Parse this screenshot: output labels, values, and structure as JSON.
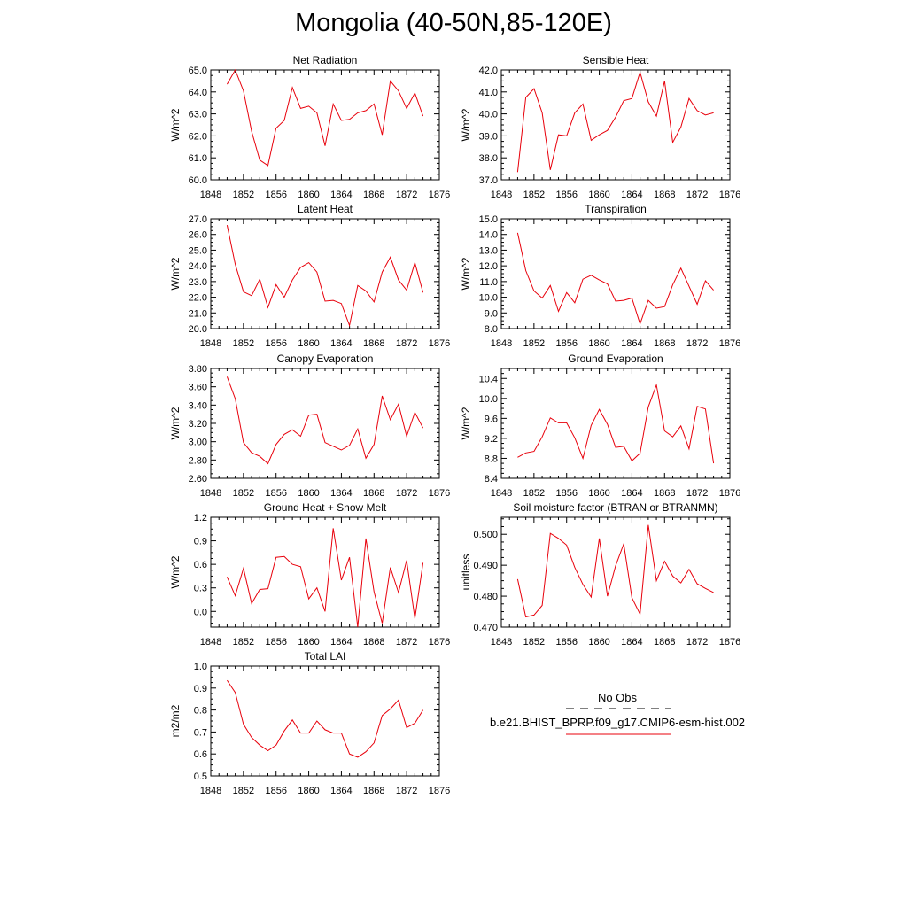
{
  "page_title": "Mongolia (40-50N,85-120E)",
  "line_color": "#e8000b",
  "chart_data": [
    {
      "type": "line",
      "title": "Net Radiation",
      "ylabel": "W/m^2",
      "x": [
        1850,
        1851,
        1852,
        1853,
        1854,
        1855,
        1856,
        1857,
        1858,
        1859,
        1860,
        1861,
        1862,
        1863,
        1864,
        1865,
        1866,
        1867,
        1868,
        1869,
        1870,
        1871,
        1872,
        1873,
        1874
      ],
      "series": [
        {
          "values": [
            64.35,
            65.0,
            64.05,
            62.2,
            60.9,
            60.65,
            62.35,
            62.7,
            64.2,
            63.25,
            63.35,
            63.05,
            61.55,
            63.45,
            62.7,
            62.75,
            63.05,
            63.15,
            63.45,
            62.05,
            64.5,
            64.05,
            63.25,
            63.95,
            62.9
          ]
        }
      ],
      "xlim": [
        1848,
        1876
      ],
      "ylim": [
        60.0,
        65.0
      ],
      "xticks": [
        "1848",
        "1852",
        "1856",
        "1860",
        "1864",
        "1868",
        "1872",
        "1876"
      ],
      "yticks": [
        "60.0",
        "61.0",
        "62.0",
        "63.0",
        "64.0",
        "65.0"
      ]
    },
    {
      "type": "line",
      "title": "Sensible Heat",
      "ylabel": "W/m^2",
      "x": [
        1850,
        1851,
        1852,
        1853,
        1854,
        1855,
        1856,
        1857,
        1858,
        1859,
        1860,
        1861,
        1862,
        1863,
        1864,
        1865,
        1866,
        1867,
        1868,
        1869,
        1870,
        1871,
        1872,
        1873,
        1874
      ],
      "series": [
        {
          "values": [
            37.35,
            40.75,
            41.15,
            40.05,
            37.45,
            39.05,
            39.0,
            40.05,
            40.45,
            38.8,
            39.05,
            39.25,
            39.85,
            40.6,
            40.7,
            41.9,
            40.55,
            39.9,
            41.5,
            38.7,
            39.4,
            40.7,
            40.15,
            39.95,
            40.05
          ]
        }
      ],
      "xlim": [
        1848,
        1876
      ],
      "ylim": [
        37.0,
        42.0
      ],
      "xticks": [
        "1848",
        "1852",
        "1856",
        "1860",
        "1864",
        "1868",
        "1872",
        "1876"
      ],
      "yticks": [
        "37.0",
        "38.0",
        "39.0",
        "40.0",
        "41.0",
        "42.0"
      ]
    },
    {
      "type": "line",
      "title": "Latent Heat",
      "ylabel": "W/m^2",
      "x": [
        1850,
        1851,
        1852,
        1853,
        1854,
        1855,
        1856,
        1857,
        1858,
        1859,
        1860,
        1861,
        1862,
        1863,
        1864,
        1865,
        1866,
        1867,
        1868,
        1869,
        1870,
        1871,
        1872,
        1873,
        1874
      ],
      "series": [
        {
          "values": [
            26.6,
            24.1,
            22.35,
            22.1,
            23.15,
            21.35,
            22.8,
            22.0,
            23.1,
            23.9,
            24.2,
            23.6,
            21.75,
            21.8,
            21.6,
            20.2,
            22.75,
            22.4,
            21.7,
            23.6,
            24.55,
            23.1,
            22.45,
            24.2,
            22.3
          ]
        }
      ],
      "xlim": [
        1848,
        1876
      ],
      "ylim": [
        20.0,
        27.0
      ],
      "xticks": [
        "1848",
        "1852",
        "1856",
        "1860",
        "1864",
        "1868",
        "1872",
        "1876"
      ],
      "yticks": [
        "20.0",
        "21.0",
        "22.0",
        "23.0",
        "24.0",
        "25.0",
        "26.0",
        "27.0"
      ]
    },
    {
      "type": "line",
      "title": "Transpiration",
      "ylabel": "W/m^2",
      "x": [
        1850,
        1851,
        1852,
        1853,
        1854,
        1855,
        1856,
        1857,
        1858,
        1859,
        1860,
        1861,
        1862,
        1863,
        1864,
        1865,
        1866,
        1867,
        1868,
        1869,
        1870,
        1871,
        1872,
        1873,
        1874
      ],
      "series": [
        {
          "values": [
            14.1,
            11.7,
            10.4,
            9.95,
            10.75,
            9.1,
            10.3,
            9.65,
            11.15,
            11.4,
            11.1,
            10.85,
            9.75,
            9.8,
            9.95,
            8.3,
            9.8,
            9.3,
            9.4,
            10.8,
            11.85,
            10.7,
            9.55,
            11.05,
            10.45
          ]
        }
      ],
      "xlim": [
        1848,
        1876
      ],
      "ylim": [
        8.0,
        15.0
      ],
      "xticks": [
        "1848",
        "1852",
        "1856",
        "1860",
        "1864",
        "1868",
        "1872",
        "1876"
      ],
      "yticks": [
        "8.0",
        "9.0",
        "10.0",
        "11.0",
        "12.0",
        "13.0",
        "14.0",
        "15.0"
      ]
    },
    {
      "type": "line",
      "title": "Canopy Evaporation",
      "ylabel": "W/m^2",
      "x": [
        1850,
        1851,
        1852,
        1853,
        1854,
        1855,
        1856,
        1857,
        1858,
        1859,
        1860,
        1861,
        1862,
        1863,
        1864,
        1865,
        1866,
        1867,
        1868,
        1869,
        1870,
        1871,
        1872,
        1873,
        1874
      ],
      "series": [
        {
          "values": [
            3.71,
            3.47,
            2.99,
            2.88,
            2.84,
            2.76,
            2.97,
            3.08,
            3.13,
            3.06,
            3.29,
            3.3,
            2.99,
            2.95,
            2.91,
            2.96,
            3.14,
            2.82,
            2.97,
            3.5,
            3.24,
            3.41,
            3.06,
            3.32,
            3.15
          ]
        }
      ],
      "xlim": [
        1848,
        1876
      ],
      "ylim": [
        2.6,
        3.8
      ],
      "xticks": [
        "1848",
        "1852",
        "1856",
        "1860",
        "1864",
        "1868",
        "1872",
        "1876"
      ],
      "yticks": [
        "2.60",
        "2.80",
        "3.00",
        "3.20",
        "3.40",
        "3.60",
        "3.80"
      ]
    },
    {
      "type": "line",
      "title": "Ground Evaporation",
      "ylabel": "W/m^2",
      "x": [
        1850,
        1851,
        1852,
        1853,
        1854,
        1855,
        1856,
        1857,
        1858,
        1859,
        1860,
        1861,
        1862,
        1863,
        1864,
        1865,
        1866,
        1867,
        1868,
        1869,
        1870,
        1871,
        1872,
        1873,
        1874
      ],
      "series": [
        {
          "values": [
            8.82,
            8.91,
            8.94,
            9.23,
            9.61,
            9.51,
            9.51,
            9.21,
            8.8,
            9.46,
            9.78,
            9.48,
            9.02,
            9.04,
            8.75,
            8.9,
            9.83,
            10.27,
            9.35,
            9.23,
            9.45,
            8.99,
            9.84,
            9.79,
            8.7
          ]
        }
      ],
      "xlim": [
        1848,
        1876
      ],
      "ylim": [
        8.4,
        10.6
      ],
      "xticks": [
        "1848",
        "1852",
        "1856",
        "1860",
        "1864",
        "1868",
        "1872",
        "1876"
      ],
      "yticks": [
        "8.4",
        "8.8",
        "9.2",
        "9.6",
        "10.0",
        "10.4"
      ]
    },
    {
      "type": "line",
      "title": "Ground Heat + Snow Melt",
      "ylabel": "W/m^2",
      "x": [
        1850,
        1851,
        1852,
        1853,
        1854,
        1855,
        1856,
        1857,
        1858,
        1859,
        1860,
        1861,
        1862,
        1863,
        1864,
        1865,
        1866,
        1867,
        1868,
        1869,
        1870,
        1871,
        1872,
        1873,
        1874
      ],
      "series": [
        {
          "values": [
            0.44,
            0.2,
            0.55,
            0.1,
            0.28,
            0.29,
            0.69,
            0.7,
            0.6,
            0.57,
            0.16,
            0.3,
            0.0,
            1.06,
            0.4,
            0.69,
            -0.2,
            0.93,
            0.25,
            -0.15,
            0.56,
            0.24,
            0.65,
            -0.09,
            0.62
          ]
        }
      ],
      "xlim": [
        1848,
        1876
      ],
      "ylim": [
        -0.2,
        1.2
      ],
      "xticks": [
        "1848",
        "1852",
        "1856",
        "1860",
        "1864",
        "1868",
        "1872",
        "1876"
      ],
      "yticks": [
        "0.0",
        "0.3",
        "0.6",
        "0.9",
        "1.2"
      ]
    },
    {
      "type": "line",
      "title": "Soil moisture factor (BTRAN or BTRANMN)",
      "ylabel": "unitless",
      "x": [
        1850,
        1851,
        1852,
        1853,
        1854,
        1855,
        1856,
        1857,
        1858,
        1859,
        1860,
        1861,
        1862,
        1863,
        1864,
        1865,
        1866,
        1867,
        1868,
        1869,
        1870,
        1871,
        1872,
        1873,
        1874
      ],
      "series": [
        {
          "values": [
            0.4855,
            0.4733,
            0.4739,
            0.477,
            0.5003,
            0.4987,
            0.4965,
            0.4893,
            0.4838,
            0.4797,
            0.4987,
            0.48,
            0.4898,
            0.4969,
            0.4795,
            0.4742,
            0.503,
            0.485,
            0.4913,
            0.4865,
            0.4843,
            0.4887,
            0.484,
            0.4825,
            0.4812
          ]
        }
      ],
      "xlim": [
        1848,
        1876
      ],
      "ylim": [
        0.47,
        0.5055
      ],
      "xticks": [
        "1848",
        "1852",
        "1856",
        "1860",
        "1864",
        "1868",
        "1872",
        "1876"
      ],
      "yticks": [
        "0.470",
        "0.480",
        "0.490",
        "0.500"
      ]
    },
    {
      "type": "line",
      "title": "Total LAI",
      "ylabel": "m2/m2",
      "x": [
        1850,
        1851,
        1852,
        1853,
        1854,
        1855,
        1856,
        1857,
        1858,
        1859,
        1860,
        1861,
        1862,
        1863,
        1864,
        1865,
        1866,
        1867,
        1868,
        1869,
        1870,
        1871,
        1872,
        1873,
        1874
      ],
      "series": [
        {
          "values": [
            0.935,
            0.88,
            0.735,
            0.675,
            0.64,
            0.615,
            0.64,
            0.705,
            0.755,
            0.695,
            0.695,
            0.75,
            0.71,
            0.695,
            0.695,
            0.6,
            0.585,
            0.61,
            0.65,
            0.775,
            0.805,
            0.845,
            0.72,
            0.74,
            0.8
          ]
        }
      ],
      "xlim": [
        1848,
        1876
      ],
      "ylim": [
        0.5,
        1.0
      ],
      "xticks": [
        "1848",
        "1852",
        "1856",
        "1860",
        "1864",
        "1868",
        "1872",
        "1876"
      ],
      "yticks": [
        "0.5",
        "0.6",
        "0.7",
        "0.8",
        "0.9",
        "1.0"
      ]
    }
  ],
  "legend": {
    "entries": [
      {
        "label": "No Obs",
        "style": "dashed",
        "color": "#000000"
      },
      {
        "label": "b.e21.BHIST_BPRP.f09_g17.CMIP6-esm-hist.002",
        "style": "solid",
        "color": "#e8000b"
      }
    ]
  }
}
